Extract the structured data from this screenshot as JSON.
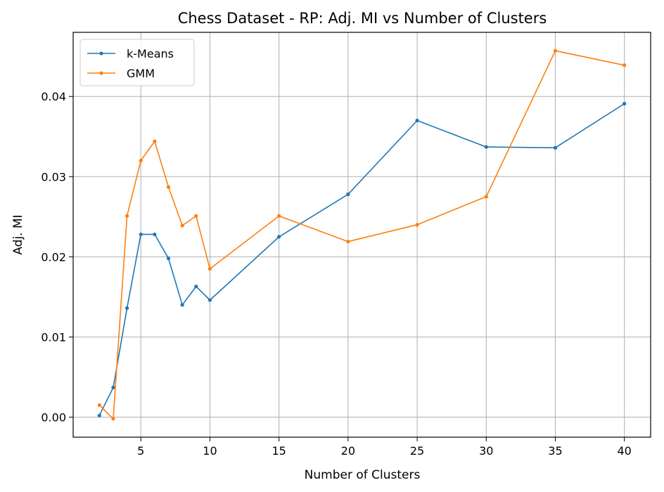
{
  "chart_data": {
    "type": "line",
    "title": "Chess Dataset - RP: Adj. MI vs Number of Clusters",
    "xlabel": "Number of Clusters",
    "ylabel": "Adj. MI",
    "xlim": [
      0.1,
      41.9
    ],
    "ylim": [
      -0.0025,
      0.048
    ],
    "x_ticks": [
      5,
      10,
      15,
      20,
      25,
      30,
      35,
      40
    ],
    "y_ticks": [
      0.0,
      0.01,
      0.02,
      0.03,
      0.04
    ],
    "y_tick_labels": [
      "0.00",
      "0.01",
      "0.02",
      "0.03",
      "0.04"
    ],
    "grid": true,
    "legend_position": "top-left",
    "series": [
      {
        "name": "k-Means",
        "color": "#1f77b4",
        "x": [
          2,
          3,
          4,
          5,
          6,
          7,
          8,
          9,
          10,
          15,
          20,
          25,
          30,
          35,
          40
        ],
        "values": [
          0.0002,
          0.0037,
          0.0136,
          0.0228,
          0.0228,
          0.0198,
          0.014,
          0.0163,
          0.0146,
          0.0225,
          0.0278,
          0.037,
          0.0337,
          0.0336,
          0.0391
        ]
      },
      {
        "name": "GMM",
        "color": "#ff7f0e",
        "x": [
          2,
          3,
          4,
          5,
          6,
          7,
          8,
          9,
          10,
          15,
          20,
          25,
          30,
          35,
          40
        ],
        "values": [
          0.0015,
          -0.0002,
          0.0251,
          0.032,
          0.0344,
          0.0287,
          0.0239,
          0.0251,
          0.0185,
          0.0251,
          0.0219,
          0.024,
          0.0275,
          0.0457,
          0.0439
        ]
      }
    ]
  }
}
